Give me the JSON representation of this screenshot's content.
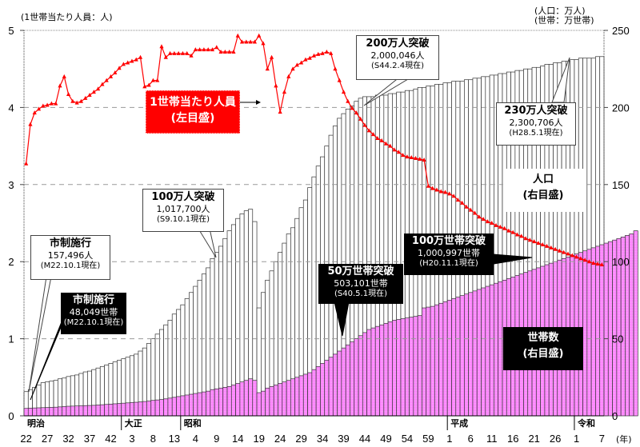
{
  "units": {
    "left": "(1世帯当たり人員：人)",
    "right_line1": "(人口：万人)",
    "right_line2": "(世帯：万世帯)",
    "x_suffix": "(年)"
  },
  "colors": {
    "household_fill": "#ff80ff",
    "population_fill": "#ffffff",
    "bar_stroke": "#333333",
    "line": "#ff0000",
    "grid": "#999999"
  },
  "callouts": {
    "pop_city": {
      "l1": "市制施行",
      "l2": "157,496人",
      "l3": "(M22.10.1現在)"
    },
    "pop_1m": {
      "l1": "100万人突破",
      "l2": "1,017,700人",
      "l3": "(S9.10.1現在)"
    },
    "pop_2m": {
      "l1": "200万人突破",
      "l2": "2,000,046人",
      "l3": "(S44.2.4現在)"
    },
    "pop_23m": {
      "l1": "230万人突破",
      "l2": "2,300,706人",
      "l3": "(H28.5.1現在)"
    },
    "hh_city": {
      "l1": "市制施行",
      "l2": "48,049世帯",
      "l3": "(M22.10.1現在)"
    },
    "hh_500k": {
      "l1": "50万世帯突破",
      "l2": "503,101世帯",
      "l3": "(S40.5.1現在)"
    },
    "hh_1m": {
      "l1": "100万世帯突破",
      "l2": "1,000,997世帯",
      "l3": "(H20.11.1現在)"
    },
    "persons_legend": {
      "l1": "1世帯当たり人員",
      "l2": "(左目盛)"
    },
    "population_legend": {
      "l1": "人口",
      "l2": "(右目盛)"
    },
    "households_legend": {
      "l1": "世帯数",
      "l2": "(右目盛)"
    }
  },
  "chart_data": {
    "type": "bar",
    "title": "",
    "xlabel": "(年)",
    "ylabel_left": "(1世帯当たり人員：人)",
    "ylabel_right": "(人口：万人)(世帯：万世帯)",
    "ylim_left": [
      0,
      5
    ],
    "ylim_right": [
      0,
      250
    ],
    "yticks_left": [
      "0",
      "1",
      "2",
      "3",
      "4",
      "5"
    ],
    "yticks_right": [
      "0",
      "50",
      "100",
      "150",
      "200",
      "250"
    ],
    "grid": "dashed horizontal at 1,2,3,4 (left scale)",
    "legend": [
      "1世帯当たり人員(左目盛)",
      "人口(右目盛)",
      "世帯数(右目盛)"
    ],
    "eras": [
      {
        "label": "明治",
        "start_year": 1889
      },
      {
        "label": "大正",
        "start_year": 1912
      },
      {
        "label": "昭和",
        "start_year": 1926
      },
      {
        "label": "平成",
        "start_year": 1989
      },
      {
        "label": "令和",
        "start_year": 2019
      }
    ],
    "x_tick_labels": [
      {
        "label": "22",
        "year": 1889
      },
      {
        "label": "27",
        "year": 1894
      },
      {
        "label": "32",
        "year": 1899
      },
      {
        "label": "37",
        "year": 1904
      },
      {
        "label": "42",
        "year": 1909
      },
      {
        "label": "3",
        "year": 1914
      },
      {
        "label": "8",
        "year": 1919
      },
      {
        "label": "13",
        "year": 1924
      },
      {
        "label": "4",
        "year": 1929
      },
      {
        "label": "9",
        "year": 1934
      },
      {
        "label": "14",
        "year": 1939
      },
      {
        "label": "19",
        "year": 1944
      },
      {
        "label": "24",
        "year": 1949
      },
      {
        "label": "29",
        "year": 1954
      },
      {
        "label": "34",
        "year": 1959
      },
      {
        "label": "39",
        "year": 1964
      },
      {
        "label": "44",
        "year": 1969
      },
      {
        "label": "49",
        "year": 1974
      },
      {
        "label": "54",
        "year": 1979
      },
      {
        "label": "59",
        "year": 1984
      },
      {
        "label": "1",
        "year": 1989
      },
      {
        "label": "6",
        "year": 1994
      },
      {
        "label": "11",
        "year": 1999
      },
      {
        "label": "16",
        "year": 2004
      },
      {
        "label": "21",
        "year": 2009
      },
      {
        "label": "26",
        "year": 2014
      },
      {
        "label": "1",
        "year": 2019
      },
      {
        "label": "7",
        "year": 2025
      }
    ],
    "x_start_year": 1889,
    "series": [
      {
        "name": "人口(万人)",
        "axis": "right",
        "type": "bar",
        "values": [
          15.7,
          17.0,
          18.5,
          20,
          21.5,
          22,
          22.5,
          23,
          24,
          24.5,
          25.5,
          26,
          26.5,
          27.5,
          28.5,
          29,
          30,
          31,
          32,
          33,
          34,
          35,
          36,
          37,
          38,
          39,
          40,
          42,
          44,
          47,
          50,
          53,
          56,
          59,
          62,
          66,
          69,
          72,
          76,
          80,
          84,
          88,
          92,
          96,
          102,
          106,
          110,
          115,
          120,
          124,
          128,
          131,
          133,
          134,
          126,
          70,
          80,
          88,
          94,
          100,
          106,
          112,
          118,
          122,
          128,
          135,
          140,
          148,
          155,
          162,
          168,
          175,
          182,
          188,
          193,
          196,
          199,
          201,
          204,
          206,
          207,
          207,
          207,
          208,
          208,
          208,
          209,
          209,
          210,
          210,
          211,
          211,
          212,
          213,
          213,
          214,
          214,
          215,
          215,
          216,
          216,
          217,
          217,
          217,
          218,
          218,
          219,
          219,
          220,
          220,
          221,
          221,
          222,
          222,
          223,
          223,
          224,
          224,
          225,
          225,
          226,
          226,
          227,
          228,
          228,
          229,
          229,
          230,
          230,
          231,
          231,
          232,
          232,
          232,
          232,
          233,
          233
        ]
      },
      {
        "name": "世帯数(万世帯)",
        "axis": "right",
        "type": "bar",
        "values": [
          4.8,
          5,
          5.1,
          5.2,
          5.3,
          5.4,
          5.5,
          5.6,
          5.8,
          6,
          6.2,
          6.3,
          6.4,
          6.5,
          6.6,
          6.7,
          6.8,
          7,
          7.2,
          7.4,
          7.6,
          7.8,
          8,
          8.2,
          8.4,
          8.6,
          8.8,
          9,
          9.3,
          9.6,
          10,
          10.3,
          10.6,
          11,
          11.5,
          12,
          12.5,
          13,
          13.5,
          14,
          14.5,
          15,
          15.5,
          16,
          17,
          17.5,
          18,
          18.5,
          19,
          20,
          21,
          22,
          23,
          24,
          23,
          15,
          16,
          18,
          19,
          20,
          21,
          22,
          23,
          24,
          25,
          26,
          27,
          28,
          30,
          32,
          34,
          36,
          38,
          40,
          42,
          44,
          46,
          48,
          50,
          52,
          54,
          56,
          57,
          58,
          59,
          60,
          61,
          62,
          62.5,
          63,
          63.5,
          64,
          64.5,
          65,
          70,
          70.5,
          71,
          72,
          73,
          74,
          75,
          76,
          77,
          78,
          79,
          80,
          81,
          82,
          83,
          84,
          85,
          86,
          87,
          88,
          89,
          90,
          91,
          92,
          93,
          94,
          95,
          96,
          97,
          98,
          99,
          100,
          101,
          102,
          103,
          104,
          105,
          106,
          107,
          108,
          109,
          110,
          111,
          112,
          113,
          114,
          115,
          116,
          117,
          118,
          120
        ]
      },
      {
        "name": "1世帯当たり人員(人)",
        "axis": "left",
        "type": "line",
        "values": [
          3.27,
          3.78,
          3.93,
          3.98,
          4.02,
          4.03,
          4.05,
          4.05,
          4.28,
          4.4,
          4.17,
          4.08,
          4.06,
          4.08,
          4.12,
          4.16,
          4.2,
          4.24,
          4.3,
          4.35,
          4.4,
          4.45,
          4.51,
          4.56,
          4.58,
          4.6,
          4.62,
          4.65,
          4.27,
          4.29,
          4.35,
          4.35,
          4.79,
          4.65,
          4.7,
          4.7,
          4.7,
          4.7,
          4.7,
          4.67,
          4.75,
          4.75,
          4.75,
          4.75,
          4.75,
          4.78,
          4.72,
          4.72,
          4.72,
          4.72,
          4.93,
          4.85,
          4.85,
          4.85,
          4.85,
          4.93,
          4.83,
          4.5,
          4.65,
          4.28,
          3.94,
          4.2,
          4.4,
          4.5,
          4.55,
          4.58,
          4.62,
          4.64,
          4.67,
          4.69,
          4.7,
          4.72,
          4.7,
          4.5,
          4.35,
          4.2,
          4.08,
          3.99,
          3.93,
          3.85,
          3.77,
          3.7,
          3.65,
          3.6,
          3.57,
          3.53,
          3.5,
          3.45,
          3.42,
          3.38,
          3.36,
          3.35,
          3.34,
          3.33,
          3.32,
          2.98,
          2.95,
          2.93,
          2.91,
          2.9,
          2.88,
          2.85,
          2.8,
          2.76,
          2.71,
          2.67,
          2.63,
          2.58,
          2.55,
          2.52,
          2.5,
          2.47,
          2.45,
          2.43,
          2.4,
          2.38,
          2.35,
          2.33,
          2.3,
          2.28,
          2.26,
          2.24,
          2.22,
          2.2,
          2.18,
          2.16,
          2.14,
          2.12,
          2.1,
          2.08,
          2.06,
          2.04,
          2.02,
          2.0,
          1.98,
          1.97,
          1.96
        ]
      }
    ]
  }
}
